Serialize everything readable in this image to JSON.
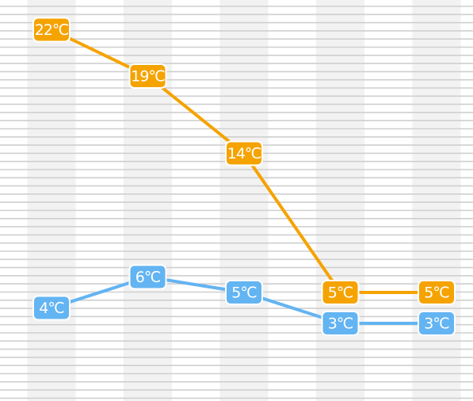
{
  "chart_data": {
    "type": "line",
    "x": [
      1,
      2,
      3,
      4,
      5
    ],
    "ylim": [
      -6,
      23
    ],
    "grid": true,
    "legend": "none",
    "series": [
      {
        "values": [
          22,
          19,
          14,
          5,
          5
        ],
        "labels": [
          "22℃",
          "19℃",
          "14℃",
          "5℃",
          "5℃"
        ],
        "color": "#F5A300"
      },
      {
        "values": [
          4,
          6,
          5,
          3,
          3
        ],
        "labels": [
          "4℃",
          "6℃",
          "5℃",
          "3℃",
          "3℃"
        ],
        "color": "#63B4F2"
      }
    ]
  },
  "colors": {
    "stripe": "#F2F2F2",
    "gridline": "#CFCFCF",
    "background": "#FFFFFF"
  }
}
